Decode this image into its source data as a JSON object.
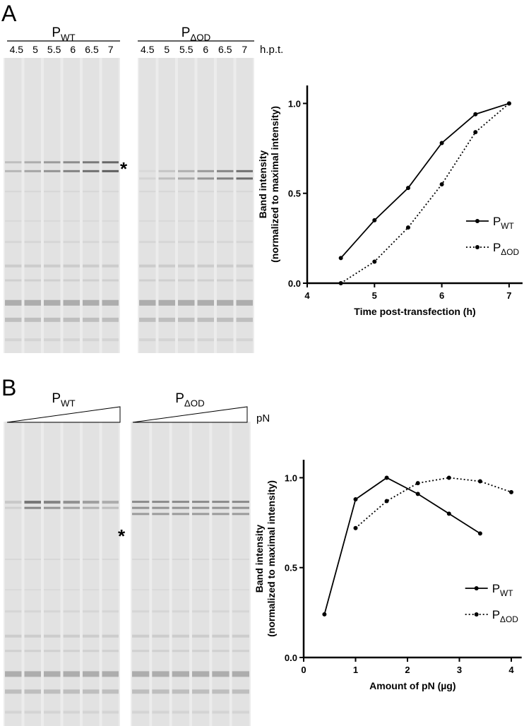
{
  "panels": [
    {
      "letter": "A",
      "groups": [
        {
          "label": "P",
          "sub": "WT",
          "lanes": [
            "4.5",
            "5",
            "5.5",
            "6",
            "6.5",
            "7"
          ]
        },
        {
          "label": "P",
          "sub": "ΔOD",
          "lanes": [
            "4.5",
            "5",
            "5.5",
            "6",
            "6.5",
            "7"
          ]
        }
      ],
      "lane_unit": "h.p.t.",
      "marker": "*"
    },
    {
      "letter": "B",
      "groups": [
        {
          "label": "P",
          "sub": "WT"
        },
        {
          "label": "P",
          "sub": "ΔOD"
        }
      ],
      "lane_unit": "pN",
      "marker": "*"
    }
  ],
  "chart_data": [
    {
      "type": "line",
      "ylabel": [
        "Band intensity",
        "(normalized to maximal intensity)"
      ],
      "xlabel": "Time post-transfection (h)",
      "xlim": [
        4,
        7.2
      ],
      "xticks": [
        4,
        5,
        6,
        7
      ],
      "ylim": [
        0,
        1.1
      ],
      "yticks": [
        {
          "value": 0,
          "label": "0.0"
        },
        {
          "value": 0.5,
          "label": "0.5"
        },
        {
          "value": 1,
          "label": "1.0"
        }
      ],
      "legend": "lower right",
      "series": [
        {
          "name": "P",
          "subscript": "WT",
          "color": "#000000",
          "line_style": "solid",
          "x": [
            4.5,
            5,
            5.5,
            6,
            6.5,
            7
          ],
          "values": [
            0.14,
            0.35,
            0.53,
            0.78,
            0.94,
            1.0
          ]
        },
        {
          "name": "P",
          "subscript": "ΔOD",
          "color": "#000000",
          "line_style": "dotted",
          "x": [
            4.5,
            5,
            5.5,
            6,
            6.5,
            7
          ],
          "values": [
            0.0,
            0.12,
            0.31,
            0.55,
            0.84,
            1.0
          ]
        }
      ]
    },
    {
      "type": "line",
      "ylabel": [
        "Band intensity",
        "(normalized to maximal intensity)"
      ],
      "xlabel": "Amount of pN (µg)",
      "xlim": [
        0,
        4.2
      ],
      "xticks": [
        0,
        1,
        2,
        3,
        4
      ],
      "ylim": [
        0,
        1.1
      ],
      "yticks": [
        {
          "value": 0,
          "label": "0.0"
        },
        {
          "value": 0.5,
          "label": "0.5"
        },
        {
          "value": 1,
          "label": "1.0"
        }
      ],
      "legend": "lower right",
      "series": [
        {
          "name": "P",
          "subscript": "WT",
          "color": "#000000",
          "line_style": "solid",
          "x": [
            0.4,
            1,
            1.6,
            2.2,
            2.8,
            3.4
          ],
          "values": [
            0.24,
            0.88,
            1.0,
            0.91,
            0.8,
            0.69
          ]
        },
        {
          "name": "P",
          "subscript": "ΔOD",
          "color": "#000000",
          "line_style": "dotted",
          "x": [
            1,
            1.6,
            2.2,
            2.8,
            3.4,
            4
          ],
          "values": [
            0.72,
            0.87,
            0.97,
            1.0,
            0.98,
            0.92
          ]
        }
      ]
    }
  ]
}
